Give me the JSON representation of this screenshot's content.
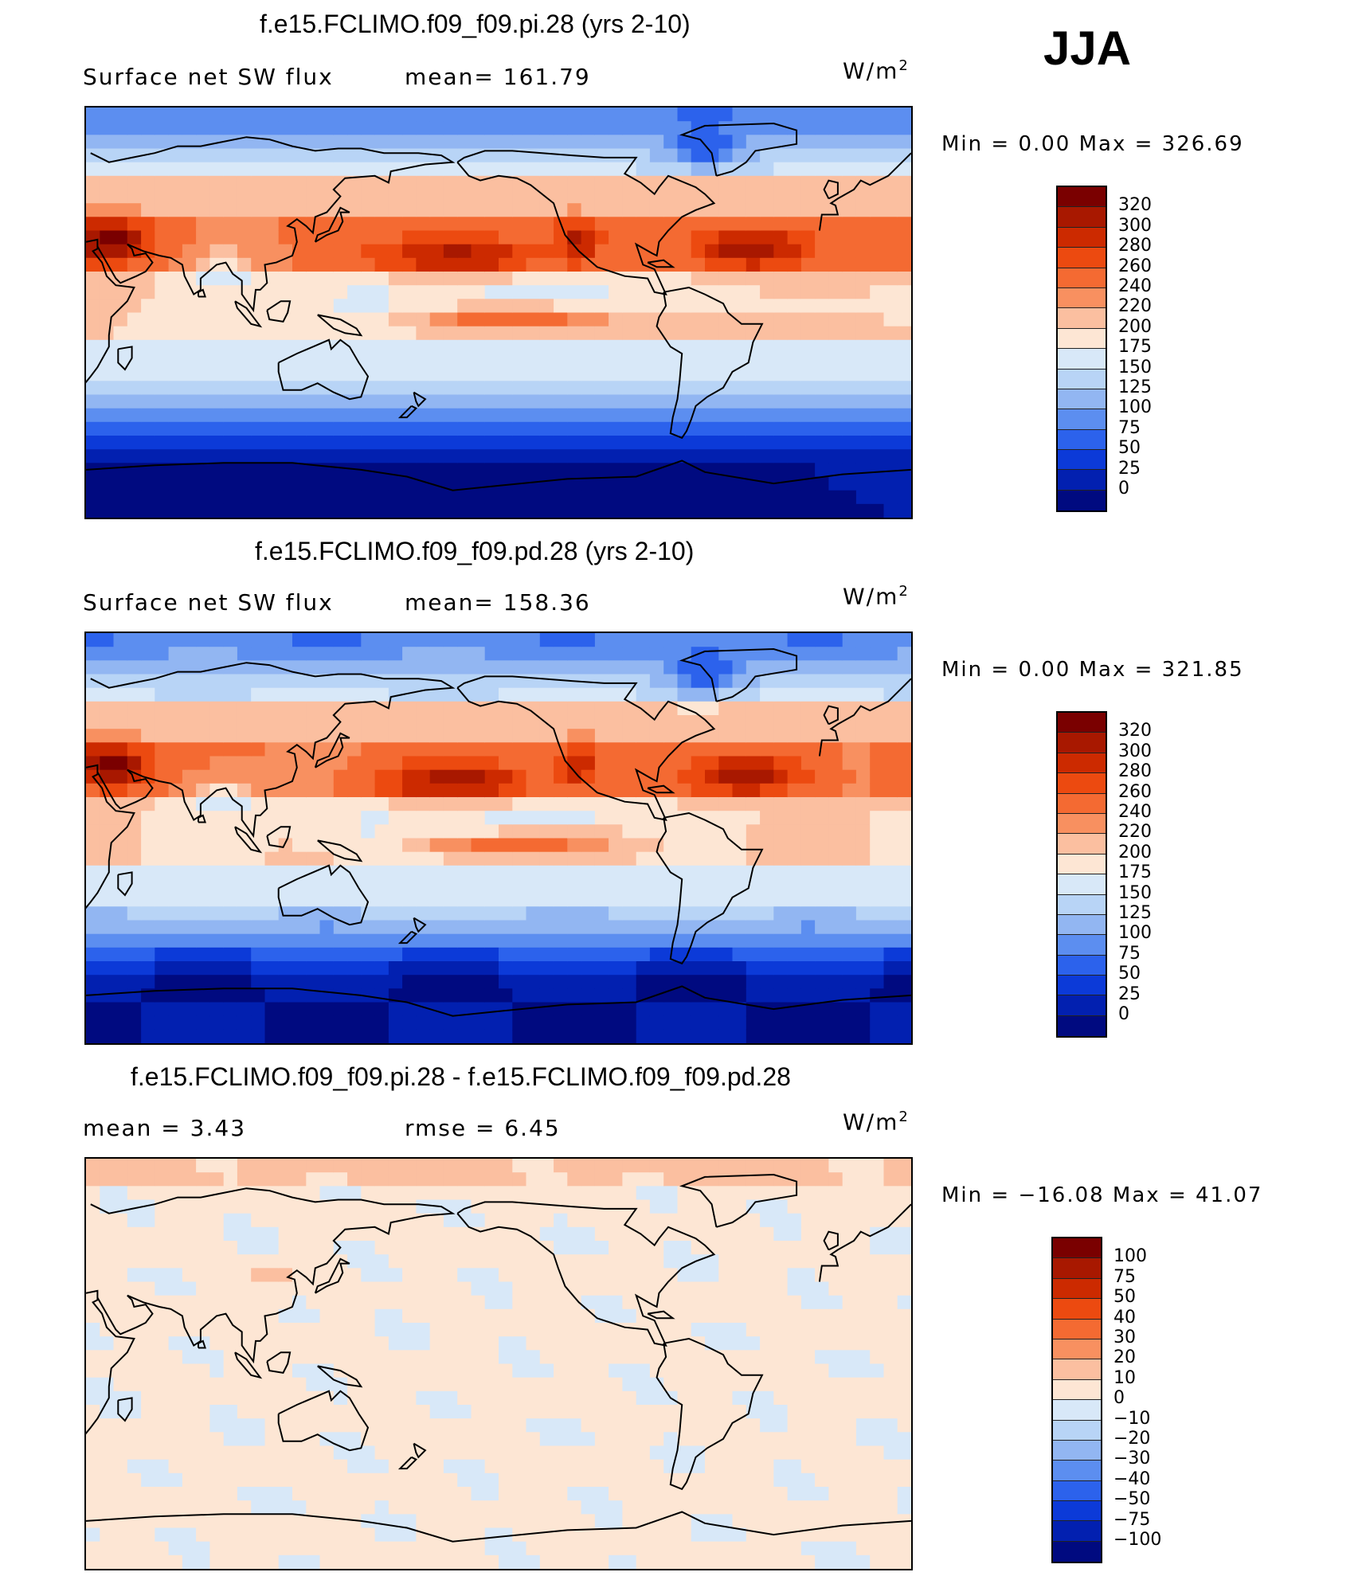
{
  "season": "JJA",
  "panels": [
    {
      "title": "f.e15.FCLIMO.f09_f09.pi.28 (yrs 2-10)",
      "left_label": "Surface net SW flux",
      "mid_label": "mean= 161.79",
      "units_base": "W/m",
      "units_exp": "2",
      "minmax": "Min =    0.00 Max = 326.69",
      "colorbar_labels": [
        "320",
        "300",
        "280",
        "260",
        "240",
        "220",
        "200",
        "175",
        "150",
        "125",
        "100",
        "75",
        "50",
        "25",
        "0"
      ],
      "colorbar_colors": [
        "#7a0000",
        "#a81800",
        "#cc2a00",
        "#ec4a10",
        "#f46a32",
        "#f89060",
        "#fbbfa0",
        "#fde6d4",
        "#d8e8f8",
        "#b8d4f6",
        "#92b6f2",
        "#5c8ef0",
        "#2c62ec",
        "#0c3ad8",
        "#0220b0",
        "#000a80"
      ],
      "field": "absolute"
    },
    {
      "title": "f.e15.FCLIMO.f09_f09.pd.28 (yrs 2-10)",
      "left_label": "Surface net SW flux",
      "mid_label": "mean= 158.36",
      "units_base": "W/m",
      "units_exp": "2",
      "minmax": "Min =    0.00 Max = 321.85",
      "colorbar_labels": [
        "320",
        "300",
        "280",
        "260",
        "240",
        "220",
        "200",
        "175",
        "150",
        "125",
        "100",
        "75",
        "50",
        "25",
        "0"
      ],
      "colorbar_colors": [
        "#7a0000",
        "#a81800",
        "#cc2a00",
        "#ec4a10",
        "#f46a32",
        "#f89060",
        "#fbbfa0",
        "#fde6d4",
        "#d8e8f8",
        "#b8d4f6",
        "#92b6f2",
        "#5c8ef0",
        "#2c62ec",
        "#0c3ad8",
        "#0220b0",
        "#000a80"
      ],
      "field": "absolute"
    },
    {
      "title": "f.e15.FCLIMO.f09_f09.pi.28 - f.e15.FCLIMO.f09_f09.pd.28",
      "left_label": "mean =    3.43",
      "mid_label": "rmse =    6.45",
      "units_base": "W/m",
      "units_exp": "2",
      "minmax": "Min = −16.08 Max =   41.07",
      "colorbar_labels": [
        "100",
        "75",
        "50",
        "40",
        "30",
        "20",
        "10",
        "0",
        "−10",
        "−20",
        "−30",
        "−40",
        "−50",
        "−75",
        "−100"
      ],
      "colorbar_colors": [
        "#7a0000",
        "#a81800",
        "#cc2a00",
        "#ec4a10",
        "#f46a32",
        "#f89060",
        "#fbbfa0",
        "#fde6d4",
        "#d8e8f8",
        "#b8d4f6",
        "#92b6f2",
        "#5c8ef0",
        "#2c62ec",
        "#0c3ad8",
        "#0220b0",
        "#000a80"
      ],
      "field": "difference"
    }
  ]
}
